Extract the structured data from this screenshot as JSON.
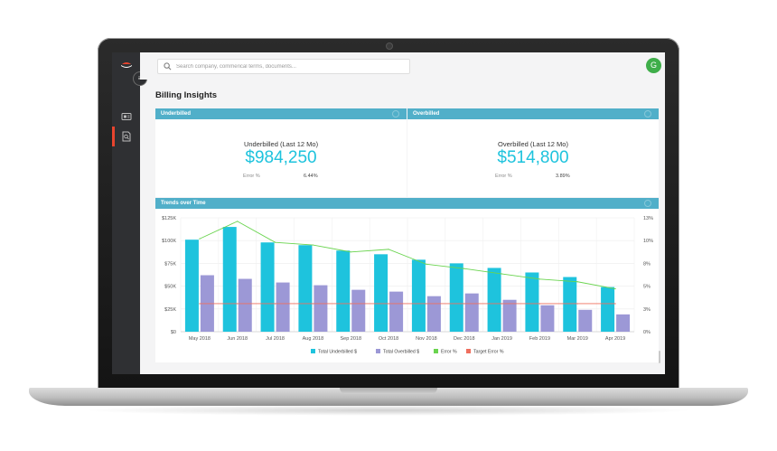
{
  "app": {
    "search": {
      "placeholder": "Search company, commerical terms, documents..."
    },
    "avatar_initial": "G",
    "page_title": "Billing Insights"
  },
  "icons": {
    "logo": "hat-logo-icon",
    "menu": "menu-toggle-icon",
    "sidebar": [
      "card-icon",
      "document-search-icon"
    ],
    "search": "search-icon"
  },
  "colors": {
    "header": "#51afc9",
    "kpi_value": "#1ec3dd",
    "underbilled": "#1ec3dd",
    "overbilled": "#9c98d6",
    "error": "#6ad44f",
    "target": "#ef6f5e",
    "avatar": "#3fae4a",
    "active_marker": "#e8442e"
  },
  "underbilled_card": {
    "header": "Underbilled",
    "label": "Underbilled (Last 12 Mo)",
    "value": "$984,250",
    "error_label": "Error %",
    "error_value": "6.44%"
  },
  "overbilled_card": {
    "header": "Overbilled",
    "label": "Overbilled (Last 12 Mo)",
    "value": "$514,800",
    "error_label": "Error %",
    "error_value": "3.89%"
  },
  "trends_card": {
    "header": "Trends over Time"
  },
  "chart_data": {
    "type": "bar",
    "categories": [
      "May 2018",
      "Jun 2018",
      "Jul 2018",
      "Aug 2018",
      "Sep 2018",
      "Oct 2018",
      "Nov 2018",
      "Dec 2018",
      "Jan 2019",
      "Feb 2019",
      "Mar 2019",
      "Apr 2019"
    ],
    "y_left": {
      "ylim": [
        0,
        125000
      ],
      "ticks": [
        "$0",
        "$25K",
        "$50K",
        "$75K",
        "$100K",
        "$125K"
      ]
    },
    "y_right": {
      "ylim": [
        0,
        13
      ],
      "ticks": [
        "0%",
        "3%",
        "5%",
        "8%",
        "10%",
        "13%"
      ]
    },
    "series": [
      {
        "name": "Total Underbilled $",
        "type": "bar",
        "axis": "left",
        "values": [
          101000,
          115000,
          98000,
          95000,
          89000,
          85000,
          79000,
          75000,
          70000,
          65000,
          60000,
          49000
        ]
      },
      {
        "name": "Total Overbilled $",
        "type": "bar",
        "axis": "left",
        "values": [
          62000,
          58000,
          54000,
          51000,
          46000,
          44000,
          39000,
          42000,
          35000,
          29000,
          24000,
          19000
        ]
      },
      {
        "name": "Error %",
        "type": "line",
        "axis": "right",
        "values": [
          10.6,
          12.6,
          10.2,
          9.9,
          9.1,
          9.4,
          7.7,
          7.2,
          6.6,
          6.0,
          5.7,
          4.9
        ]
      },
      {
        "name": "Target Error %",
        "type": "line",
        "axis": "right",
        "values": [
          3.2,
          3.2,
          3.2,
          3.2,
          3.2,
          3.2,
          3.2,
          3.2,
          3.2,
          3.2,
          3.2,
          3.2
        ]
      }
    ],
    "legend_position": "bottom",
    "grid": true
  }
}
